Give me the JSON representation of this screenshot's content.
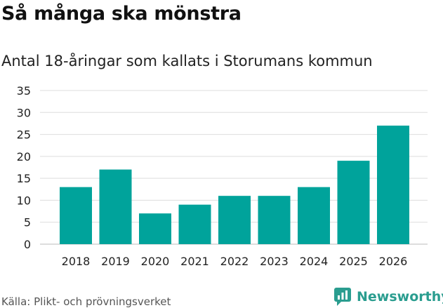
{
  "header": {
    "title": "Så många ska mönstra",
    "subtitle": "Antal 18-åringar som kallats i Storumans kommun"
  },
  "footer": {
    "source": "Källa: Plikt- och prövningsverket",
    "brand": "Newsworthy"
  },
  "colors": {
    "bar": "#00a39b",
    "grid": "#dddddd",
    "brand": "#2a9d8f"
  },
  "chart_data": {
    "type": "bar",
    "title": "Så många ska mönstra",
    "subtitle": "Antal 18-åringar som kallats i Storumans kommun",
    "xlabel": "",
    "ylabel": "",
    "categories": [
      "2018",
      "2019",
      "2020",
      "2021",
      "2022",
      "2023",
      "2024",
      "2025",
      "2026"
    ],
    "values": [
      13,
      17,
      7,
      9,
      11,
      11,
      13,
      19,
      27
    ],
    "ylim": [
      0,
      35
    ],
    "yticks": [
      0,
      5,
      10,
      15,
      20,
      25,
      30,
      35
    ],
    "grid": true,
    "legend": "none"
  }
}
